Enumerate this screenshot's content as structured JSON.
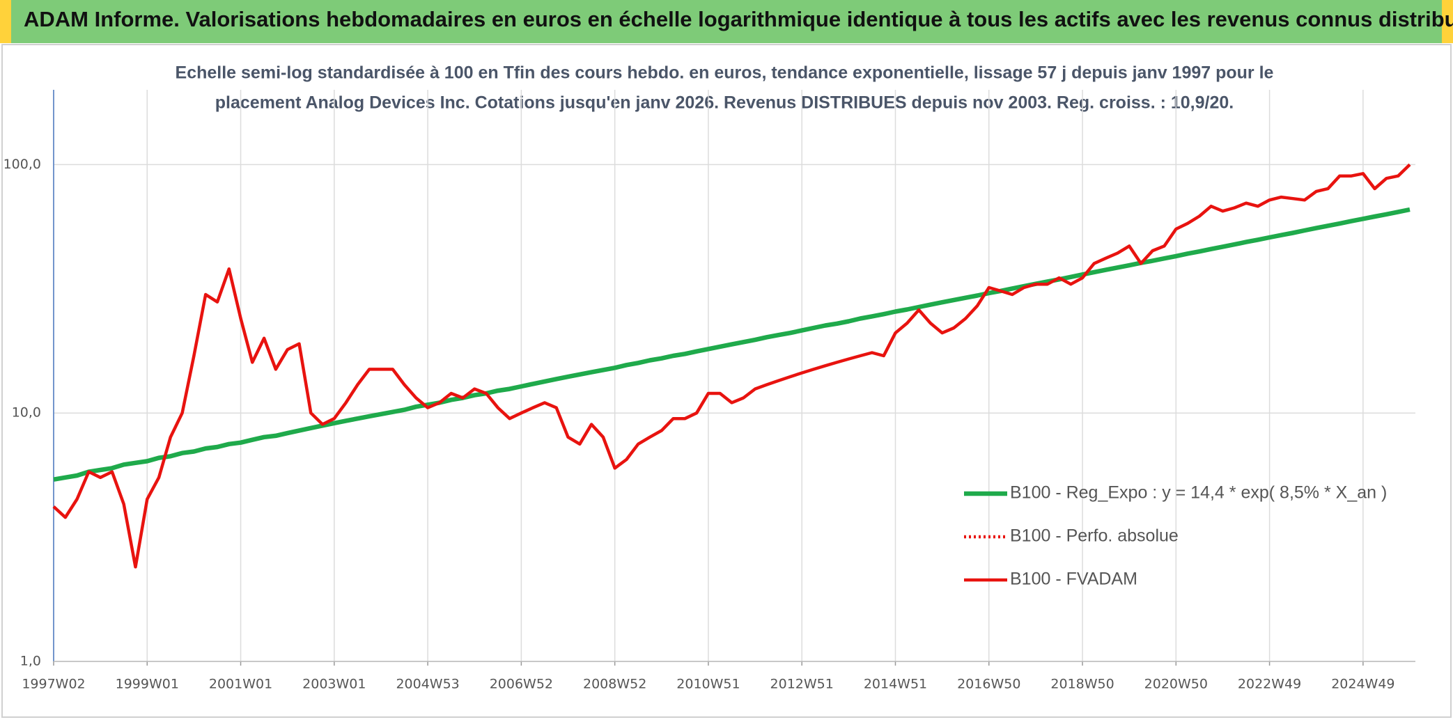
{
  "header": {
    "title": "ADAM Informe. Valorisations hebdomadaires en euros en échelle logarithmique identique à tous les actifs avec les revenus connus distribués"
  },
  "chart_data": {
    "type": "line",
    "subtitle": [
      "Echelle semi-log standardisée à 100 en Tfin des cours hebdo. en euros, tendance exponentielle, lissage 57 j depuis janv 1997 pour le",
      "placement Analog Devices Inc. Cotations jusqu'en janv 2026. Revenus DISTRIBUES depuis nov 2003. Reg. croiss. : 10,9/20."
    ],
    "categories": [
      "1997W02",
      null,
      null,
      null,
      null,
      null,
      null,
      null,
      "1999W01",
      null,
      null,
      null,
      null,
      null,
      null,
      null,
      "2001W01",
      null,
      null,
      null,
      null,
      null,
      null,
      null,
      "2003W01",
      null,
      null,
      null,
      null,
      null,
      null,
      null,
      "2004W53",
      null,
      null,
      null,
      null,
      null,
      null,
      null,
      "2006W52",
      null,
      null,
      null,
      null,
      null,
      null,
      null,
      "2008W52",
      null,
      null,
      null,
      null,
      null,
      null,
      null,
      "2010W51",
      null,
      null,
      null,
      null,
      null,
      null,
      null,
      "2012W51",
      null,
      null,
      null,
      null,
      null,
      null,
      null,
      "2014W51",
      null,
      null,
      null,
      null,
      null,
      null,
      null,
      "2016W50",
      null,
      null,
      null,
      null,
      null,
      null,
      null,
      "2018W50",
      null,
      null,
      null,
      null,
      null,
      null,
      null,
      "2020W50",
      null,
      null,
      null,
      null,
      null,
      null,
      null,
      "2022W49",
      null,
      null,
      null,
      null,
      null,
      null,
      null,
      "2024W49",
      null,
      null,
      null,
      null
    ],
    "log_scale": true,
    "grid": true,
    "legend_position": "right",
    "ylim": [
      1,
      200
    ],
    "yticks": [
      {
        "value": 1,
        "label": "1,0"
      },
      {
        "value": 10,
        "label": "10,0"
      },
      {
        "value": 100,
        "label": "100,0"
      }
    ],
    "series": [
      {
        "name": "B100 - Reg_Expo : y = 14,4 * exp( 8,5% *  X_an )",
        "color": "#1faa4b",
        "dash": "solid",
        "values": [
          5.4,
          5.5,
          5.6,
          5.8,
          5.9,
          6.0,
          6.2,
          6.3,
          6.4,
          6.6,
          6.7,
          6.9,
          7.0,
          7.2,
          7.3,
          7.5,
          7.6,
          7.8,
          8.0,
          8.1,
          8.3,
          8.5,
          8.7,
          8.9,
          9.1,
          9.3,
          9.5,
          9.7,
          9.9,
          10.1,
          10.3,
          10.6,
          10.8,
          11.0,
          11.3,
          11.5,
          11.8,
          12.0,
          12.3,
          12.5,
          12.8,
          13.1,
          13.4,
          13.7,
          14.0,
          14.3,
          14.6,
          14.9,
          15.2,
          15.6,
          15.9,
          16.3,
          16.6,
          17.0,
          17.3,
          17.7,
          18.1,
          18.5,
          18.9,
          19.3,
          19.7,
          20.2,
          20.6,
          21.0,
          21.5,
          22.0,
          22.5,
          22.9,
          23.4,
          24.0,
          24.5,
          25.0,
          25.6,
          26.1,
          26.7,
          27.3,
          27.9,
          28.5,
          29.1,
          29.7,
          30.4,
          31.0,
          31.7,
          32.4,
          33.1,
          33.8,
          34.5,
          35.3,
          36.1,
          36.9,
          37.7,
          38.5,
          39.3,
          40.2,
          41.0,
          41.9,
          42.8,
          43.8,
          44.7,
          45.7,
          46.7,
          47.7,
          48.8,
          49.8,
          50.9,
          52.0,
          53.1,
          54.3,
          55.5,
          56.7,
          57.9,
          59.2,
          60.5,
          61.8,
          63.1,
          64.5,
          65.9
        ]
      },
      {
        "name": "B100 - Perfo. absolue",
        "color": "#e8130f",
        "dash": "dotted",
        "values": [
          null,
          null,
          null,
          null,
          null,
          null,
          null,
          null,
          null,
          null,
          null,
          null,
          null,
          null,
          null,
          null,
          null,
          null,
          null,
          null,
          null,
          null,
          null,
          null,
          null,
          null,
          null,
          null,
          null,
          null,
          null,
          null,
          null,
          null,
          null,
          null,
          null,
          null,
          null,
          null,
          null,
          null,
          null,
          null,
          null,
          null,
          null,
          null,
          null,
          null,
          null,
          null,
          null,
          null,
          null,
          null,
          null,
          null,
          null,
          null,
          null,
          null,
          null,
          null,
          null,
          null,
          null,
          null,
          null,
          null,
          null,
          null,
          null,
          null,
          null,
          null,
          null,
          null,
          null,
          null,
          null,
          null,
          null,
          null,
          null,
          null,
          null,
          null,
          null,
          null,
          null,
          null,
          null,
          null,
          null,
          null,
          null,
          null,
          null,
          null,
          null,
          null,
          null,
          null,
          null,
          null,
          null,
          null,
          null,
          null,
          null,
          null,
          null,
          null,
          null,
          null,
          null
        ]
      },
      {
        "name": "B100 - FVADAM",
        "color": "#e8130f",
        "dash": "solid",
        "values": [
          4.2,
          3.8,
          4.5,
          5.8,
          5.5,
          5.8,
          4.3,
          2.4,
          4.5,
          5.5,
          8.0,
          10,
          17,
          30,
          28,
          38,
          24,
          16,
          20,
          15,
          18,
          19,
          10,
          9,
          9.5,
          11,
          13,
          15,
          15,
          15,
          13,
          11.5,
          10.5,
          11,
          12,
          11.5,
          12.5,
          12,
          10.5,
          9.5,
          10,
          10.5,
          11,
          10.5,
          8,
          7.5,
          9,
          8,
          6,
          6.5,
          7.5,
          8,
          8.5,
          9.5,
          9.5,
          10,
          12,
          12,
          11,
          11.5,
          12.5,
          13,
          13.5,
          14,
          14.5,
          15,
          15.5,
          16,
          16.5,
          17,
          17.5,
          17,
          21,
          23,
          26,
          23,
          21,
          22,
          24,
          27,
          32,
          31,
          30,
          32,
          33,
          33,
          35,
          33,
          35,
          40,
          42,
          44,
          47,
          40,
          45,
          47,
          55,
          58,
          62,
          68,
          65,
          67,
          70,
          68,
          72,
          74,
          73,
          72,
          78,
          80,
          90,
          90,
          92,
          80,
          88,
          90,
          100
        ]
      }
    ]
  }
}
